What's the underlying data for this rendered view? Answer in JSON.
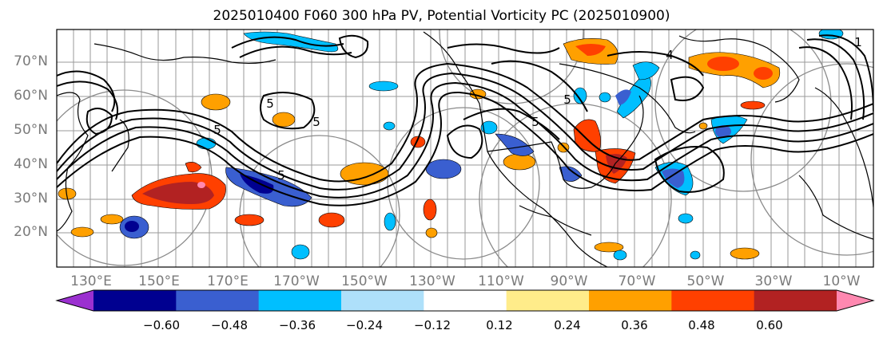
{
  "title": "2025010400 F060 300 hPa PV, Potential Vorticity PC (2025010900)",
  "latitude_labels": [
    {
      "label": "70°N",
      "lat": 70
    },
    {
      "label": "60°N",
      "lat": 60
    },
    {
      "label": "50°N",
      "lat": 50
    },
    {
      "label": "40°N",
      "lat": 40
    },
    {
      "label": "30°N",
      "lat": 30
    },
    {
      "label": "20°N",
      "lat": 20
    }
  ],
  "longitude_labels": [
    "130°E",
    "150°E",
    "170°E",
    "170°W",
    "150°W",
    "130°W",
    "110°W",
    "90°W",
    "70°W",
    "50°W",
    "30°W",
    "10°W"
  ],
  "contour_labels": [
    "5",
    "5",
    "5",
    "5",
    "4",
    "1",
    "5",
    "5"
  ],
  "colorbar": {
    "colors": [
      "#9b30d0",
      "#000090",
      "#3a5fd0",
      "#00bfff",
      "#aee0fa",
      "#ffffff",
      "#ffec8a",
      "#ffa000",
      "#ff4000",
      "#b22222",
      "#ff88b0"
    ],
    "tick_labels": [
      "−0.60",
      "−0.48",
      "−0.36",
      "−0.24",
      "−0.12",
      "0.12",
      "0.24",
      "0.36",
      "0.48",
      "0.60"
    ]
  }
}
